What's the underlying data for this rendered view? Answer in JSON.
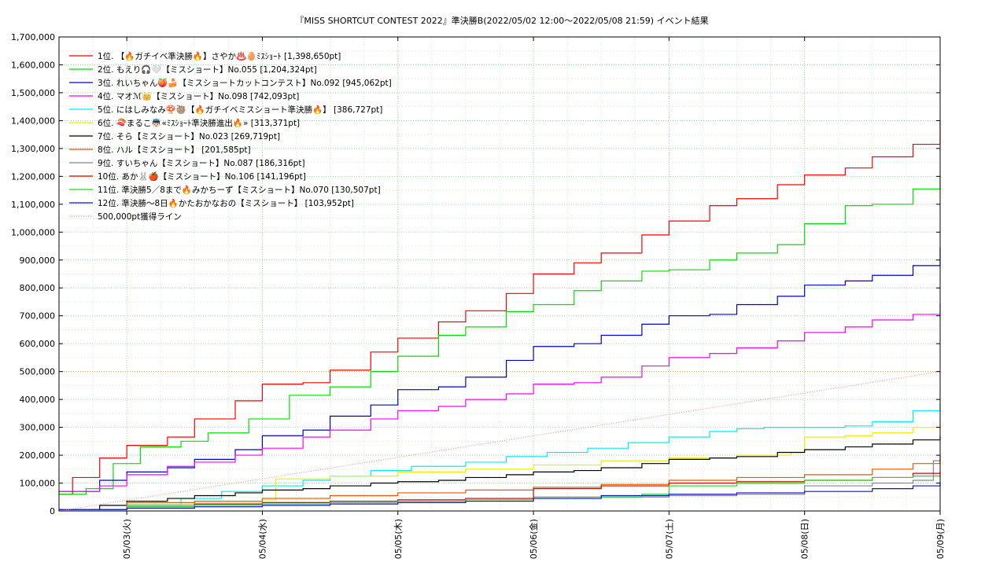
{
  "chart_data": {
    "type": "line",
    "title": "『MISS SHORTCUT CONTEST 2022』準決勝B(2022/05/02 12:00～2022/05/08 21:59)          イベント結果",
    "xlabel": "",
    "ylabel": "",
    "xlim": [
      "2022-05-02 12:00",
      "2022-05-09 00:00"
    ],
    "ylim": [
      0,
      1700000
    ],
    "yticks": [
      0,
      100000,
      200000,
      300000,
      400000,
      500000,
      600000,
      700000,
      800000,
      900000,
      1000000,
      1100000,
      1200000,
      1300000,
      1400000,
      1500000,
      1600000,
      1700000
    ],
    "ytick_labels": [
      "0",
      "100,000",
      "200,000",
      "300,000",
      "400,000",
      "500,000",
      "600,000",
      "700,000",
      "800,000",
      "900,000",
      "1,000,000",
      "1,100,000",
      "1,200,000",
      "1,300,000",
      "1,400,000",
      "1,500,000",
      "1,600,000",
      "1,700,000"
    ],
    "xticks": [
      0.5,
      1.5,
      2.5,
      3.5,
      4.5,
      5.5,
      6.5
    ],
    "xtick_labels": [
      "05/03(火)",
      "05/04(水)",
      "05/05(木)",
      "05/06(金)",
      "05/07(土)",
      "05/08(日)",
      "05/09(月)"
    ],
    "grid": true,
    "legend_position": "top-left",
    "series": [
      {
        "name": "1位. 【🔥ガチイベ準決勝🔥】さやか♨️🥚ﾐｽｼｮｰﾄ [1,398,650pt]",
        "color": "#ff0000",
        "x": [
          0,
          0.1,
          0.3,
          0.5,
          0.8,
          1.0,
          1.3,
          1.5,
          1.8,
          2.0,
          2.3,
          2.5,
          2.8,
          3.0,
          3.3,
          3.5,
          3.8,
          4.0,
          4.3,
          4.5,
          4.8,
          5.0,
          5.3,
          5.5,
          5.8,
          6.0,
          6.3,
          6.5
        ],
        "y": [
          60000,
          120000,
          190000,
          235000,
          265000,
          330000,
          395000,
          455000,
          460000,
          505000,
          570000,
          620000,
          678000,
          718000,
          780000,
          850000,
          890000,
          925000,
          990000,
          1040000,
          1095000,
          1120000,
          1170000,
          1205000,
          1230000,
          1270000,
          1315000,
          1398650
        ]
      },
      {
        "name": "2位. もえり🎧🤍【ミスショート】No.055 [1,204,324pt]",
        "color": "#00e000",
        "x": [
          0,
          0.2,
          0.4,
          0.6,
          0.9,
          1.1,
          1.4,
          1.7,
          2.0,
          2.3,
          2.5,
          2.8,
          3.0,
          3.3,
          3.5,
          3.8,
          4.0,
          4.3,
          4.5,
          4.8,
          5.0,
          5.3,
          5.5,
          5.8,
          6.0,
          6.3,
          6.5
        ],
        "y": [
          60000,
          80000,
          170000,
          230000,
          250000,
          280000,
          330000,
          415000,
          445000,
          500000,
          555000,
          630000,
          660000,
          715000,
          740000,
          790000,
          825000,
          860000,
          865000,
          900000,
          925000,
          955000,
          1030000,
          1095000,
          1100000,
          1155000,
          1204324
        ]
      },
      {
        "name": "3位. れいちゃん🍑🍰【ミスショートカットコンテスト】No.092 [945,062pt]",
        "color": "#0000cc",
        "x": [
          0,
          0.3,
          0.5,
          0.8,
          1.0,
          1.3,
          1.5,
          1.8,
          2.0,
          2.3,
          2.5,
          2.8,
          3.0,
          3.3,
          3.5,
          3.8,
          4.0,
          4.3,
          4.5,
          4.8,
          5.0,
          5.3,
          5.5,
          5.8,
          6.0,
          6.3,
          6.5
        ],
        "y": [
          70000,
          110000,
          140000,
          155000,
          185000,
          220000,
          270000,
          290000,
          340000,
          380000,
          435000,
          445000,
          480000,
          540000,
          590000,
          600000,
          630000,
          670000,
          700000,
          705000,
          740000,
          770000,
          810000,
          825000,
          845000,
          880000,
          945062
        ]
      },
      {
        "name": "4位. マオℳ👑【ミスショート】No.098 [742,093pt]",
        "color": "#ff00ff",
        "x": [
          0,
          0.3,
          0.5,
          0.8,
          1.0,
          1.3,
          1.5,
          1.8,
          2.0,
          2.3,
          2.5,
          2.8,
          3.0,
          3.3,
          3.5,
          3.8,
          4.0,
          4.3,
          4.5,
          4.8,
          5.0,
          5.3,
          5.5,
          5.8,
          6.0,
          6.3,
          6.5
        ],
        "y": [
          70000,
          90000,
          130000,
          160000,
          175000,
          200000,
          225000,
          265000,
          290000,
          330000,
          360000,
          375000,
          400000,
          420000,
          455000,
          460000,
          480000,
          520000,
          550000,
          565000,
          585000,
          610000,
          640000,
          660000,
          685000,
          705000,
          742093
        ]
      },
      {
        "name": "5位. にはしみなみ🍄🦥【🔥ガチイベミスショート準決勝🔥】 [386,727pt]",
        "color": "#00eeee",
        "x": [
          0,
          0.5,
          0.9,
          1.2,
          1.5,
          1.8,
          2.0,
          2.3,
          2.6,
          3.0,
          3.3,
          3.6,
          3.9,
          4.2,
          4.5,
          4.8,
          5.0,
          5.2,
          5.5,
          5.8,
          6.0,
          6.3,
          6.5
        ],
        "y": [
          5000,
          20000,
          45000,
          70000,
          90000,
          110000,
          125000,
          145000,
          160000,
          175000,
          195000,
          210000,
          225000,
          245000,
          265000,
          285000,
          295000,
          300000,
          300000,
          305000,
          320000,
          360000,
          386727
        ]
      },
      {
        "name": "6位. 🍣まるこ👼🏻«ﾐｽｼｮｰﾄ準決勝進出🔥» [313,371pt]",
        "color": "#eeee00",
        "x": [
          0,
          0.5,
          1.0,
          1.5,
          1.6,
          2.0,
          2.5,
          3.0,
          3.5,
          4.0,
          4.5,
          5.0,
          5.4,
          5.5,
          5.8,
          6.0,
          6.3,
          6.5
        ],
        "y": [
          5000,
          25000,
          30000,
          40000,
          115000,
          125000,
          140000,
          150000,
          165000,
          180000,
          190000,
          200000,
          210000,
          265000,
          270000,
          280000,
          300000,
          313371
        ]
      },
      {
        "name": "7位. そら【ミスショート】No.023 [269,719pt]",
        "color": "#000000",
        "x": [
          0,
          0.3,
          0.5,
          0.8,
          1.0,
          1.3,
          1.5,
          1.8,
          2.0,
          2.3,
          2.5,
          2.8,
          3.0,
          3.3,
          3.5,
          3.8,
          4.0,
          4.3,
          4.5,
          4.8,
          5.0,
          5.3,
          5.5,
          5.8,
          6.0,
          6.3,
          6.5
        ],
        "y": [
          5000,
          20000,
          35000,
          45000,
          55000,
          65000,
          75000,
          80000,
          90000,
          100000,
          105000,
          110000,
          120000,
          130000,
          140000,
          145000,
          155000,
          170000,
          185000,
          190000,
          195000,
          210000,
          220000,
          230000,
          240000,
          255000,
          269719
        ]
      },
      {
        "name": "8位. ハル【ミスショート】 [201,585pt]",
        "color": "#ee5500",
        "x": [
          0,
          0.5,
          1.0,
          1.5,
          2.0,
          2.5,
          3.0,
          3.5,
          4.0,
          4.5,
          5.0,
          5.5,
          6.0,
          6.3,
          6.5
        ],
        "y": [
          5000,
          30000,
          35000,
          45000,
          55000,
          65000,
          75000,
          85000,
          95000,
          110000,
          120000,
          130000,
          150000,
          170000,
          201585
        ]
      },
      {
        "name": "9位. すいちゃん【ミスショート】No.087 [186,316pt]",
        "color": "#888888",
        "x": [
          0,
          0.5,
          1.0,
          1.5,
          2.0,
          2.5,
          3.0,
          3.5,
          4.0,
          4.5,
          5.0,
          5.5,
          6.0,
          6.3,
          6.45,
          6.5
        ],
        "y": [
          5000,
          20000,
          25000,
          30000,
          35000,
          40000,
          45000,
          50000,
          50000,
          55000,
          60000,
          90000,
          100000,
          110000,
          180000,
          186316
        ]
      },
      {
        "name": "10位. あか🐰🍎【ミスショート】No.106 [141,196pt]",
        "color": "#dd0000",
        "x": [
          0,
          0.5,
          1.0,
          1.5,
          2.0,
          2.5,
          3.0,
          3.5,
          4.0,
          4.5,
          5.0,
          5.5,
          6.0,
          6.3,
          6.5
        ],
        "y": [
          5000,
          15000,
          25000,
          30000,
          35000,
          40000,
          45000,
          80000,
          90000,
          100000,
          105000,
          110000,
          120000,
          135000,
          141196
        ]
      },
      {
        "name": "11位. 準決勝5／8まで🔥みかちーず【ミスショート】No.070 [130,507pt]",
        "color": "#22dd22",
        "x": [
          0,
          0.5,
          1.0,
          1.5,
          2.0,
          2.5,
          3.0,
          3.5,
          4.0,
          4.3,
          4.5,
          5.0,
          5.5,
          6.0,
          6.3,
          6.5
        ],
        "y": [
          5000,
          15000,
          20000,
          25000,
          30000,
          35000,
          40000,
          45000,
          50000,
          60000,
          90000,
          100000,
          110000,
          120000,
          125000,
          130507
        ]
      },
      {
        "name": "12位. 準決勝〜8日🔥かたおかなおの【ミスショート】 [103,952pt]",
        "color": "#1111cc",
        "x": [
          0,
          0.5,
          1.0,
          1.5,
          2.0,
          2.5,
          3.0,
          3.5,
          4.0,
          4.5,
          5.0,
          5.5,
          6.0,
          6.3,
          6.5
        ],
        "y": [
          5000,
          10000,
          15000,
          20000,
          25000,
          30000,
          35000,
          45000,
          55000,
          60000,
          65000,
          70000,
          80000,
          90000,
          103952
        ]
      },
      {
        "name": "500,000pt獲得ライン",
        "color": "#ff8888",
        "style": "dotted",
        "x": [
          0,
          6.5
        ],
        "y": [
          0,
          500000
        ]
      }
    ]
  }
}
